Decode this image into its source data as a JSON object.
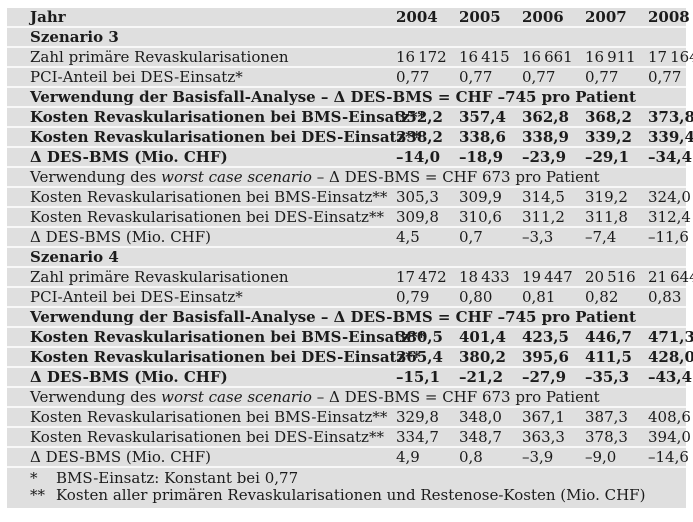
{
  "table": {
    "colors": {
      "row_bg": "#dfdfdf",
      "separator": "#f8f8f8",
      "text": "#1b1b1b",
      "page_bg": "#ffffff"
    },
    "header": {
      "label": "Jahr",
      "years": [
        "2004",
        "2005",
        "2006",
        "2007",
        "2008"
      ]
    },
    "rows": [
      {
        "type": "section",
        "label": "Szenario 3"
      },
      {
        "type": "data",
        "bold": false,
        "label": "Zahl primäre Revaskularisationen",
        "values": [
          "16 172",
          "16 415",
          "16 661",
          "16 911",
          "17 164"
        ]
      },
      {
        "type": "data",
        "bold": false,
        "label": "PCI-Anteil bei DES-Einsatz*",
        "values": [
          "0,77",
          "0,77",
          "0,77",
          "0,77",
          "0,77"
        ]
      },
      {
        "type": "span",
        "bold": true,
        "parts": [
          {
            "text": "Verwendung der Basisfall-Analyse – Δ DES-BMS = CHF –745 pro Patient",
            "italic": false
          }
        ]
      },
      {
        "type": "data",
        "bold": true,
        "label": "Kosten Revaskularisationen bei BMS-Einsatz**",
        "values": [
          "352,2",
          "357,4",
          "362,8",
          "368,2",
          "373,8"
        ]
      },
      {
        "type": "data",
        "bold": true,
        "label": "Kosten Revaskularisationen bei DES-Einsatz**",
        "values": [
          "338,2",
          "338,6",
          "338,9",
          "339,2",
          "339,4"
        ]
      },
      {
        "type": "data",
        "bold": true,
        "label": "Δ DES-BMS (Mio. CHF)",
        "values": [
          "–14,0",
          "–18,9",
          "–23,9",
          "–29,1",
          "–34,4"
        ]
      },
      {
        "type": "span",
        "bold": false,
        "parts": [
          {
            "text": "Verwendung des ",
            "italic": false
          },
          {
            "text": "worst case scenario",
            "italic": true
          },
          {
            "text": " – Δ DES-BMS = CHF 673 pro Patient",
            "italic": false
          }
        ]
      },
      {
        "type": "data",
        "bold": false,
        "label": "Kosten Revaskularisationen bei BMS-Einsatz**",
        "values": [
          "305,3",
          "309,9",
          "314,5",
          "319,2",
          "324,0"
        ]
      },
      {
        "type": "data",
        "bold": false,
        "label": "Kosten Revaskularisationen bei DES-Einsatz**",
        "values": [
          "309,8",
          "310,6",
          "311,2",
          "311,8",
          "312,4"
        ]
      },
      {
        "type": "data",
        "bold": false,
        "label": "Δ DES-BMS (Mio. CHF)",
        "values": [
          "4,5",
          "0,7",
          "–3,3",
          "–7,4",
          "–11,6"
        ]
      },
      {
        "type": "section",
        "label": "Szenario 4"
      },
      {
        "type": "data",
        "bold": false,
        "label": "Zahl primäre Revaskularisationen",
        "values": [
          "17 472",
          "18 433",
          "19 447",
          "20 516",
          "21 644"
        ]
      },
      {
        "type": "data",
        "bold": false,
        "label": "PCI-Anteil bei DES-Einsatz*",
        "values": [
          "0,79",
          "0,80",
          "0,81",
          "0,82",
          "0,83"
        ]
      },
      {
        "type": "span",
        "bold": true,
        "parts": [
          {
            "text": "Verwendung der Basisfall-Analyse – Δ DES-BMS = CHF –745 pro Patient",
            "italic": false
          }
        ]
      },
      {
        "type": "data",
        "bold": true,
        "label": "Kosten Revaskularisationen bei BMS-Einsatz**",
        "values": [
          "380,5",
          "401,4",
          "423,5",
          "446,7",
          "471,3"
        ]
      },
      {
        "type": "data",
        "bold": true,
        "label": "Kosten Revaskularisationen bei DES-Einsatz**",
        "values": [
          "365,4",
          "380,2",
          "395,6",
          "411,5",
          "428,0"
        ]
      },
      {
        "type": "data",
        "bold": true,
        "label": "Δ DES-BMS (Mio. CHF)",
        "values": [
          "–15,1",
          "–21,2",
          "–27,9",
          "–35,3",
          "–43,4"
        ]
      },
      {
        "type": "span",
        "bold": false,
        "parts": [
          {
            "text": "Verwendung des ",
            "italic": false
          },
          {
            "text": "worst case scenario",
            "italic": true
          },
          {
            "text": " – Δ DES-BMS = CHF 673 pro Patient",
            "italic": false
          }
        ]
      },
      {
        "type": "data",
        "bold": false,
        "label": "Kosten Revaskularisationen bei BMS-Einsatz**",
        "values": [
          "329,8",
          "348,0",
          "367,1",
          "387,3",
          "408,6"
        ]
      },
      {
        "type": "data",
        "bold": false,
        "label": "Kosten Revaskularisationen bei DES-Einsatz**",
        "values": [
          "334,7",
          "348,7",
          "363,3",
          "378,3",
          "394,0"
        ]
      },
      {
        "type": "data",
        "bold": false,
        "label": "Δ DES-BMS (Mio. CHF)",
        "values": [
          "4,9",
          "0,8",
          "–3,9",
          "–9,0",
          "–14,6"
        ]
      }
    ],
    "footnotes": [
      {
        "marker": "*",
        "text": "BMS-Einsatz: Konstant bei 0,77"
      },
      {
        "marker": "**",
        "text": "Kosten aller primären Revaskularisationen und Restenose-Kosten (Mio. CHF)"
      }
    ]
  }
}
